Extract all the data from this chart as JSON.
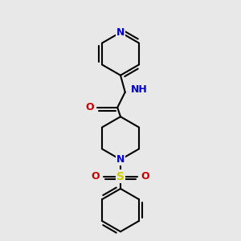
{
  "background_color": "#e8e8e8",
  "line_width": 1.5,
  "fig_width": 3.0,
  "fig_height": 3.0,
  "dpi": 100,
  "atom_colors": {
    "N": "#0000cc",
    "O": "#cc0000",
    "S": "#cccc00",
    "C": "#000000",
    "H": "#666666"
  }
}
